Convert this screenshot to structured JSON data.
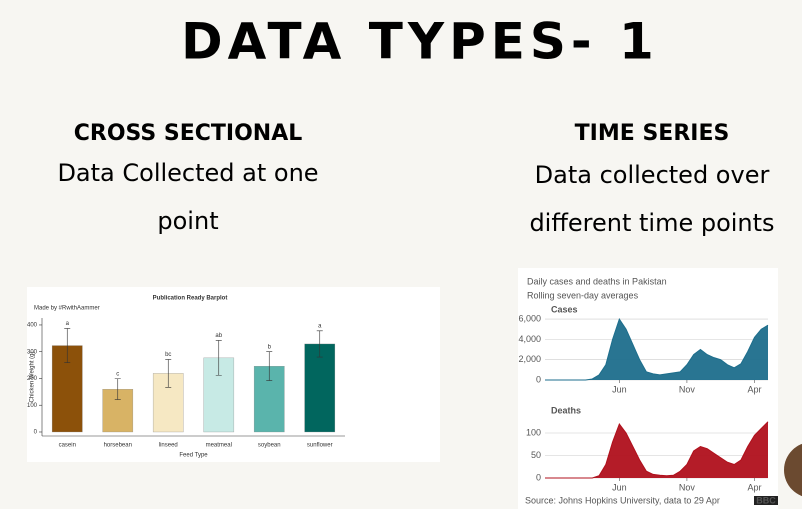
{
  "title": "DATA TYPES- 1",
  "left": {
    "heading": "CROSS SECTIONAL",
    "text_lines": [
      "Data Collected at one",
      "point"
    ],
    "chart": {
      "type": "bar",
      "title": "Publication Ready Barplot",
      "subtitle": "Made by #RwithAammer",
      "y_label": "Chicken Weight (g)",
      "x_label": "Feed Type",
      "categories": [
        "casein",
        "horsebean",
        "linseed",
        "meatmeal",
        "soybean",
        "sunflower"
      ],
      "values": [
        323,
        160,
        219,
        277,
        246,
        329
      ],
      "errors": [
        64,
        39,
        52,
        65,
        54,
        49
      ],
      "annotations": [
        "a",
        "c",
        "bc",
        "ab",
        "b",
        "a"
      ],
      "colors": [
        "#8c510a",
        "#d8b365",
        "#f6e8c3",
        "#c7eae5",
        "#5ab4ac",
        "#01665e"
      ],
      "ylim": [
        -15,
        426
      ],
      "yticks": [
        0,
        100,
        200,
        300,
        400
      ]
    }
  },
  "right": {
    "heading": "TIME SERIES",
    "text_lines": [
      "Data collected over",
      "different time points"
    ],
    "chart": {
      "type": "area",
      "title": "Daily cases and deaths in Pakistan",
      "subtitle": "Rolling seven-day averages",
      "source": "Source: Johns Hopkins University, data to 29 Apr",
      "logo": "BBC",
      "panels": [
        {
          "title": "Cases",
          "color": "#1d6e8c",
          "categories": [
            null,
            null,
            null,
            null,
            null,
            null,
            null,
            null,
            null,
            null,
            null,
            "Jun",
            null,
            null,
            null,
            null,
            null,
            null,
            null,
            null,
            null,
            "Nov",
            null,
            null,
            null,
            null,
            null,
            null,
            null,
            null,
            null,
            "Apr",
            null,
            null
          ],
          "values": [
            0,
            0,
            0,
            0,
            0,
            0,
            0,
            100,
            500,
            1500,
            4000,
            6000,
            5000,
            3500,
            2000,
            800,
            600,
            500,
            600,
            700,
            800,
            1500,
            2500,
            3000,
            2500,
            2200,
            2000,
            1500,
            1200,
            1600,
            2800,
            4200,
            5000,
            5400
          ],
          "ylim": [
            0,
            6500
          ],
          "yticks": [
            0,
            {
              "value": 2000,
              "label": "2,000"
            },
            {
              "value": 4000,
              "label": "4,000"
            },
            {
              "value": 6000,
              "label": "6,000"
            }
          ]
        },
        {
          "title": "Deaths",
          "color": "#b0101c",
          "categories": [
            null,
            null,
            null,
            null,
            null,
            null,
            null,
            null,
            null,
            null,
            null,
            "Jun",
            null,
            null,
            null,
            null,
            null,
            null,
            null,
            null,
            null,
            "Nov",
            null,
            null,
            null,
            null,
            null,
            null,
            null,
            null,
            null,
            "Apr",
            null,
            null
          ],
          "values": [
            0,
            0,
            0,
            0,
            0,
            0,
            0,
            0,
            5,
            30,
            80,
            120,
            100,
            70,
            40,
            15,
            8,
            6,
            5,
            6,
            15,
            30,
            60,
            70,
            65,
            55,
            45,
            35,
            30,
            40,
            70,
            95,
            110,
            125
          ],
          "ylim": [
            0,
            140
          ],
          "yticks": [
            0,
            50,
            100
          ]
        }
      ]
    }
  }
}
